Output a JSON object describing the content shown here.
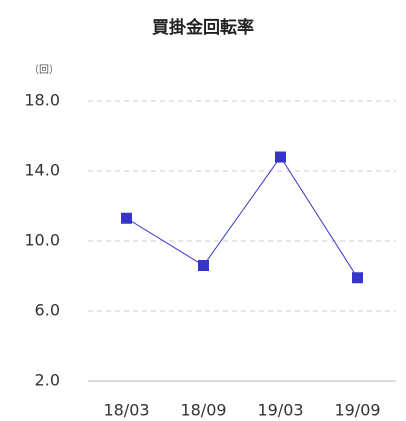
{
  "chart_data": {
    "type": "line",
    "title": "買掛金回転率",
    "y_label": "（回）",
    "categories": [
      "18/03",
      "18/09",
      "19/03",
      "19/09"
    ],
    "series": [
      {
        "name": "買掛金回転率",
        "color": "#3535c8",
        "values": [
          11.3,
          8.6,
          14.8,
          7.9
        ]
      }
    ],
    "ylim": [
      2,
      18
    ],
    "yticks": [
      {
        "value": 2,
        "label": "2.0"
      },
      {
        "value": 6,
        "label": "6.0"
      },
      {
        "value": 10,
        "label": "10.0"
      },
      {
        "value": 14,
        "label": "14.0"
      },
      {
        "value": 18,
        "label": "18.0"
      }
    ],
    "grid": true
  }
}
